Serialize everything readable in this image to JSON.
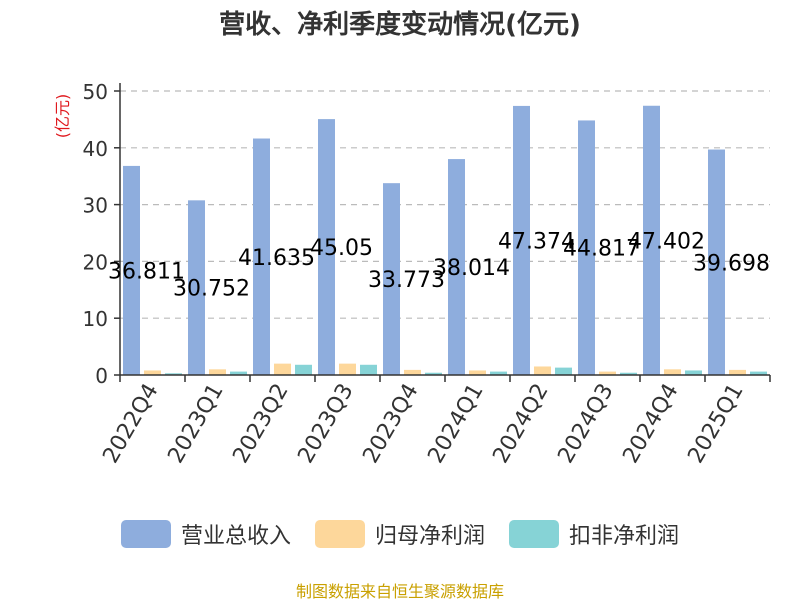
{
  "chart_data": {
    "type": "bar",
    "title": "营收、净利季度变动情况(亿元)",
    "ylabel": "(亿元)",
    "xlabel": "",
    "ylim": [
      0,
      50
    ],
    "yticks": [
      0,
      10,
      20,
      30,
      40,
      50
    ],
    "grid": true,
    "legend_position": "bottom",
    "categories": [
      "2022Q4",
      "2023Q1",
      "2023Q2",
      "2023Q3",
      "2023Q4",
      "2024Q1",
      "2024Q2",
      "2024Q3",
      "2024Q4",
      "2025Q1"
    ],
    "series": [
      {
        "name": "营业总收入",
        "color": "#8eaddd",
        "values": [
          36.811,
          30.752,
          41.635,
          45.05,
          33.773,
          38.014,
          47.374,
          44.817,
          47.402,
          39.698
        ],
        "labels": [
          "36.811",
          "30.752",
          "41.635",
          "45.05",
          "33.773",
          "38.014",
          "47.374",
          "44.817",
          "47.402",
          "39.698"
        ]
      },
      {
        "name": "归母净利润",
        "color": "#fdd79b",
        "values": [
          0.8,
          1.0,
          2.0,
          2.0,
          0.9,
          0.8,
          1.5,
          0.6,
          1.0,
          0.9
        ]
      },
      {
        "name": "扣非净利润",
        "color": "#86d3d6",
        "values": [
          0.3,
          0.6,
          1.8,
          1.8,
          0.4,
          0.6,
          1.3,
          0.4,
          0.8,
          0.6
        ]
      }
    ]
  },
  "source_note": "制图数据来自恒生聚源数据库"
}
